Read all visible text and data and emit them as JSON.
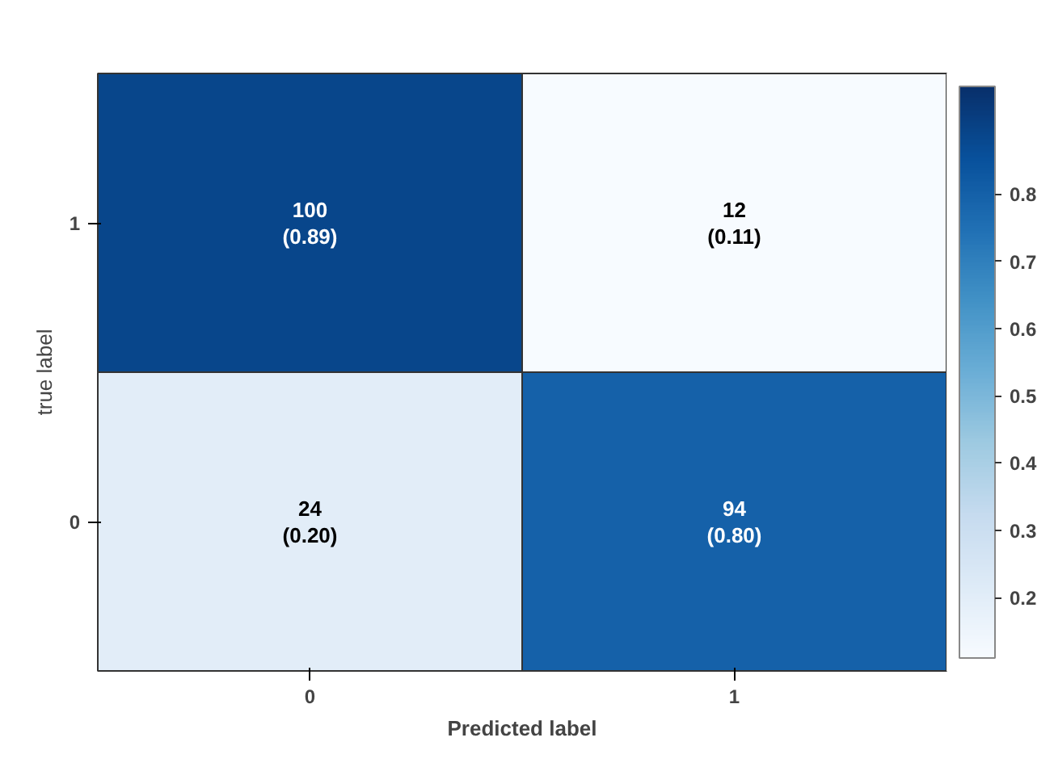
{
  "chart_data": {
    "type": "heatmap",
    "xlabel": "Predicted label",
    "ylabel": "true label",
    "categories": [
      "0",
      "1"
    ],
    "y_categories": [
      "1",
      "0"
    ],
    "cells": [
      [
        0.89,
        0.11
      ],
      [
        0.2,
        0.8
      ]
    ],
    "cell_labels": [
      [
        "100\n(0.89)",
        "12\n(0.11)"
      ],
      [
        "24\n(0.20)",
        "94\n(0.80)"
      ]
    ],
    "clim": [
      0.11,
      0.96
    ],
    "cticks": [
      0.2,
      0.3,
      0.4,
      0.5,
      0.6,
      0.7,
      0.8
    ]
  }
}
